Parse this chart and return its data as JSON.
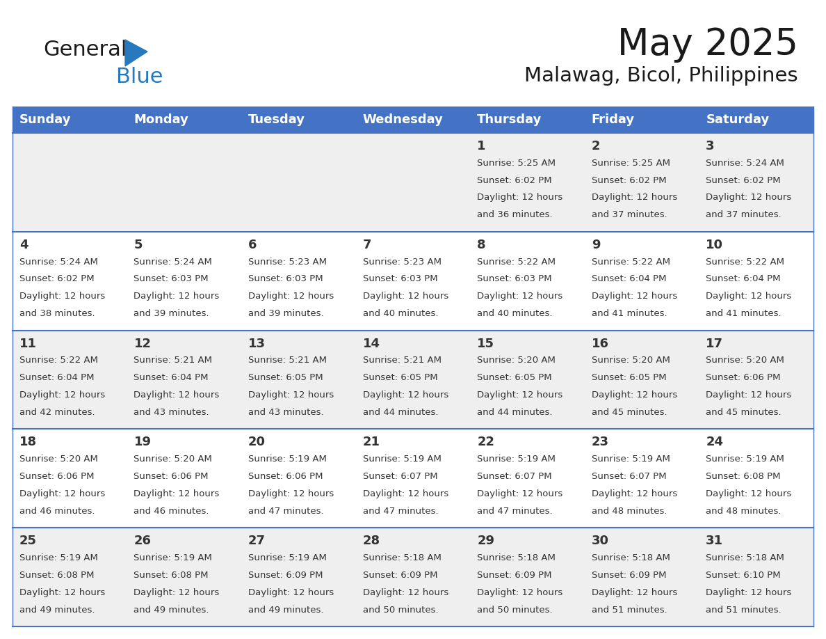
{
  "title": "May 2025",
  "subtitle": "Malawag, Bicol, Philippines",
  "header_color": "#4472C4",
  "header_text_color": "#FFFFFF",
  "background_color": "#FFFFFF",
  "alt_row_color": "#EFEFEF",
  "days_of_week": [
    "Sunday",
    "Monday",
    "Tuesday",
    "Wednesday",
    "Thursday",
    "Friday",
    "Saturday"
  ],
  "cell_text_color": "#333333",
  "line_color": "#4472C4",
  "calendar": [
    [
      {
        "day": "",
        "sunrise": "",
        "sunset": "",
        "daylight": ""
      },
      {
        "day": "",
        "sunrise": "",
        "sunset": "",
        "daylight": ""
      },
      {
        "day": "",
        "sunrise": "",
        "sunset": "",
        "daylight": ""
      },
      {
        "day": "",
        "sunrise": "",
        "sunset": "",
        "daylight": ""
      },
      {
        "day": "1",
        "sunrise": "5:25 AM",
        "sunset": "6:02 PM",
        "daylight": "12 hours and 36 minutes."
      },
      {
        "day": "2",
        "sunrise": "5:25 AM",
        "sunset": "6:02 PM",
        "daylight": "12 hours and 37 minutes."
      },
      {
        "day": "3",
        "sunrise": "5:24 AM",
        "sunset": "6:02 PM",
        "daylight": "12 hours and 37 minutes."
      }
    ],
    [
      {
        "day": "4",
        "sunrise": "5:24 AM",
        "sunset": "6:02 PM",
        "daylight": "12 hours and 38 minutes."
      },
      {
        "day": "5",
        "sunrise": "5:24 AM",
        "sunset": "6:03 PM",
        "daylight": "12 hours and 39 minutes."
      },
      {
        "day": "6",
        "sunrise": "5:23 AM",
        "sunset": "6:03 PM",
        "daylight": "12 hours and 39 minutes."
      },
      {
        "day": "7",
        "sunrise": "5:23 AM",
        "sunset": "6:03 PM",
        "daylight": "12 hours and 40 minutes."
      },
      {
        "day": "8",
        "sunrise": "5:22 AM",
        "sunset": "6:03 PM",
        "daylight": "12 hours and 40 minutes."
      },
      {
        "day": "9",
        "sunrise": "5:22 AM",
        "sunset": "6:04 PM",
        "daylight": "12 hours and 41 minutes."
      },
      {
        "day": "10",
        "sunrise": "5:22 AM",
        "sunset": "6:04 PM",
        "daylight": "12 hours and 41 minutes."
      }
    ],
    [
      {
        "day": "11",
        "sunrise": "5:22 AM",
        "sunset": "6:04 PM",
        "daylight": "12 hours and 42 minutes."
      },
      {
        "day": "12",
        "sunrise": "5:21 AM",
        "sunset": "6:04 PM",
        "daylight": "12 hours and 43 minutes."
      },
      {
        "day": "13",
        "sunrise": "5:21 AM",
        "sunset": "6:05 PM",
        "daylight": "12 hours and 43 minutes."
      },
      {
        "day": "14",
        "sunrise": "5:21 AM",
        "sunset": "6:05 PM",
        "daylight": "12 hours and 44 minutes."
      },
      {
        "day": "15",
        "sunrise": "5:20 AM",
        "sunset": "6:05 PM",
        "daylight": "12 hours and 44 minutes."
      },
      {
        "day": "16",
        "sunrise": "5:20 AM",
        "sunset": "6:05 PM",
        "daylight": "12 hours and 45 minutes."
      },
      {
        "day": "17",
        "sunrise": "5:20 AM",
        "sunset": "6:06 PM",
        "daylight": "12 hours and 45 minutes."
      }
    ],
    [
      {
        "day": "18",
        "sunrise": "5:20 AM",
        "sunset": "6:06 PM",
        "daylight": "12 hours and 46 minutes."
      },
      {
        "day": "19",
        "sunrise": "5:20 AM",
        "sunset": "6:06 PM",
        "daylight": "12 hours and 46 minutes."
      },
      {
        "day": "20",
        "sunrise": "5:19 AM",
        "sunset": "6:06 PM",
        "daylight": "12 hours and 47 minutes."
      },
      {
        "day": "21",
        "sunrise": "5:19 AM",
        "sunset": "6:07 PM",
        "daylight": "12 hours and 47 minutes."
      },
      {
        "day": "22",
        "sunrise": "5:19 AM",
        "sunset": "6:07 PM",
        "daylight": "12 hours and 47 minutes."
      },
      {
        "day": "23",
        "sunrise": "5:19 AM",
        "sunset": "6:07 PM",
        "daylight": "12 hours and 48 minutes."
      },
      {
        "day": "24",
        "sunrise": "5:19 AM",
        "sunset": "6:08 PM",
        "daylight": "12 hours and 48 minutes."
      }
    ],
    [
      {
        "day": "25",
        "sunrise": "5:19 AM",
        "sunset": "6:08 PM",
        "daylight": "12 hours and 49 minutes."
      },
      {
        "day": "26",
        "sunrise": "5:19 AM",
        "sunset": "6:08 PM",
        "daylight": "12 hours and 49 minutes."
      },
      {
        "day": "27",
        "sunrise": "5:19 AM",
        "sunset": "6:09 PM",
        "daylight": "12 hours and 49 minutes."
      },
      {
        "day": "28",
        "sunrise": "5:18 AM",
        "sunset": "6:09 PM",
        "daylight": "12 hours and 50 minutes."
      },
      {
        "day": "29",
        "sunrise": "5:18 AM",
        "sunset": "6:09 PM",
        "daylight": "12 hours and 50 minutes."
      },
      {
        "day": "30",
        "sunrise": "5:18 AM",
        "sunset": "6:09 PM",
        "daylight": "12 hours and 51 minutes."
      },
      {
        "day": "31",
        "sunrise": "5:18 AM",
        "sunset": "6:10 PM",
        "daylight": "12 hours and 51 minutes."
      }
    ]
  ],
  "logo_text1": "General",
  "logo_text2": "Blue",
  "logo_color1": "#1a1a1a",
  "logo_color2": "#2878BE",
  "triangle_color": "#2878BE",
  "title_fontsize": 38,
  "subtitle_fontsize": 21,
  "header_fontsize": 13,
  "day_num_fontsize": 13,
  "cell_fontsize": 9.5,
  "logo_fontsize": 22
}
